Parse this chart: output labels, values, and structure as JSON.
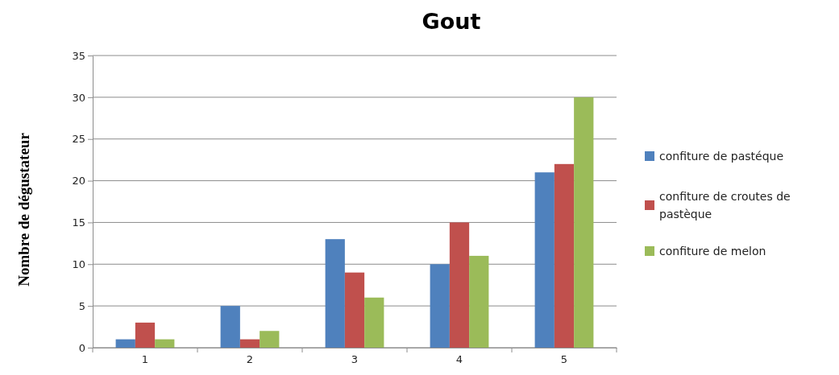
{
  "chart_data": {
    "type": "bar",
    "title": "Gout",
    "ylabel": "Nombre de dégustateur",
    "categories": [
      "1",
      "2",
      "3",
      "4",
      "5"
    ],
    "series": [
      {
        "name": "confiture de pastéque",
        "color": "#4f81bd",
        "values": [
          1,
          5,
          13,
          10,
          21
        ]
      },
      {
        "name": "confiture de croutes de pastèque",
        "color": "#c0504d",
        "values": [
          3,
          1,
          9,
          15,
          22
        ]
      },
      {
        "name": "confiture de melon",
        "color": "#9bbb59",
        "values": [
          1,
          2,
          6,
          11,
          30
        ]
      }
    ],
    "ylim": [
      0,
      35
    ],
    "yticks": [
      0,
      5,
      10,
      15,
      20,
      25,
      30,
      35
    ],
    "grid": "y",
    "legend": "right"
  }
}
